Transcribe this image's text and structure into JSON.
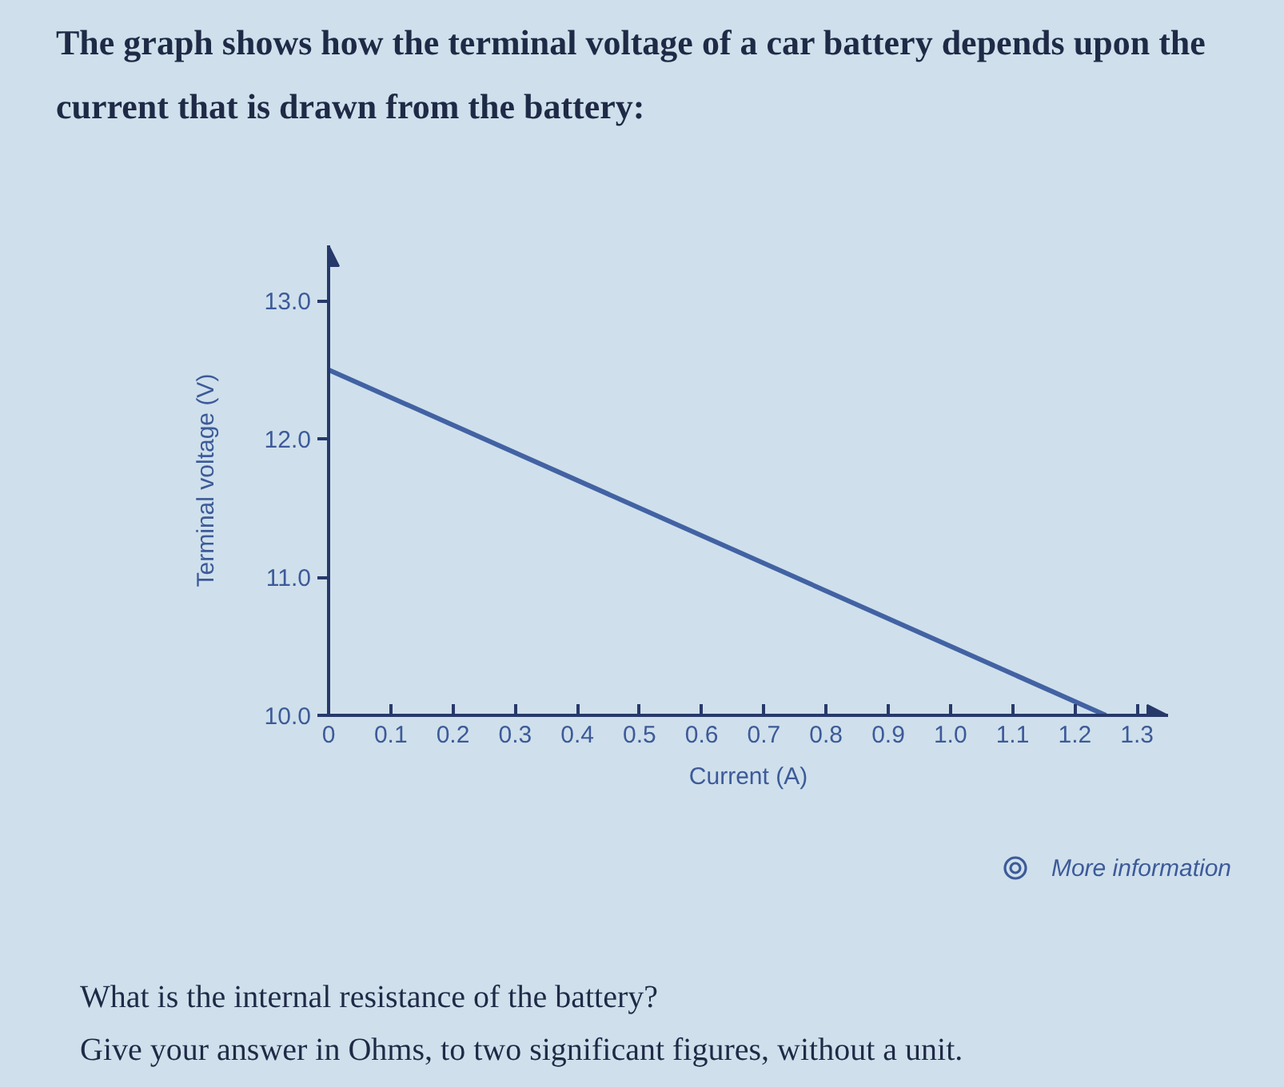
{
  "chart_data": {
    "type": "line",
    "title": "The graph shows how the terminal voltage of a car battery depends upon the current that is drawn from the battery:",
    "xlabel": "Current (A)",
    "ylabel": "Terminal voltage (V)",
    "x": [
      0,
      1.25
    ],
    "series": [
      {
        "color": "#4262a3",
        "values": [
          12.5,
          10.0
        ]
      }
    ],
    "xlim": [
      0,
      1.35
    ],
    "ylim": [
      10,
      13.4
    ],
    "xticks": [
      0,
      0.1,
      0.2,
      0.3,
      0.4,
      0.5,
      0.6,
      0.7,
      0.8,
      0.9,
      {
        "value": 1,
        "label": "1.0"
      },
      1.1,
      1.2,
      1.3
    ],
    "yticks": [
      {
        "value": 10,
        "label": "10.0"
      },
      {
        "value": 11,
        "label": "11.0"
      },
      {
        "value": 12,
        "label": "12.0"
      },
      {
        "value": 13,
        "label": "13.0"
      }
    ],
    "grid": false,
    "annotations": [
      "More information",
      "What is the internal resistance of the battery?",
      "Give your answer in Ohms, to two significant figures, without a unit."
    ]
  }
}
